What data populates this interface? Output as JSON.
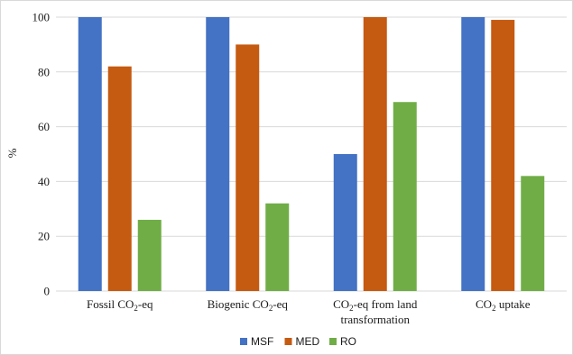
{
  "chart_data": {
    "type": "bar",
    "ylabel": "%",
    "ylim": [
      0,
      100
    ],
    "yticks": [
      "0",
      "20",
      "40",
      "60",
      "80",
      "100"
    ],
    "grid": true,
    "legend": "bottom",
    "categories": [
      {
        "main": "Fossil CO",
        "sub": "2",
        "rest": "-eq",
        "line2": ""
      },
      {
        "main": "Biogenic CO",
        "sub": "2",
        "rest": "-eq",
        "line2": ""
      },
      {
        "main": "CO",
        "sub": "2",
        "rest": "-eq from land",
        "line2": "transformation"
      },
      {
        "main": "CO",
        "sub": "2",
        "rest": " uptake",
        "line2": ""
      }
    ],
    "series": [
      {
        "name": "MSF",
        "color": "#4472c4",
        "values": [
          100,
          100,
          50,
          100
        ]
      },
      {
        "name": "MED",
        "color": "#c55a11",
        "values": [
          82,
          90,
          100,
          99
        ]
      },
      {
        "name": "RO",
        "color": "#70ad47",
        "values": [
          26,
          32,
          69,
          42
        ]
      }
    ]
  }
}
